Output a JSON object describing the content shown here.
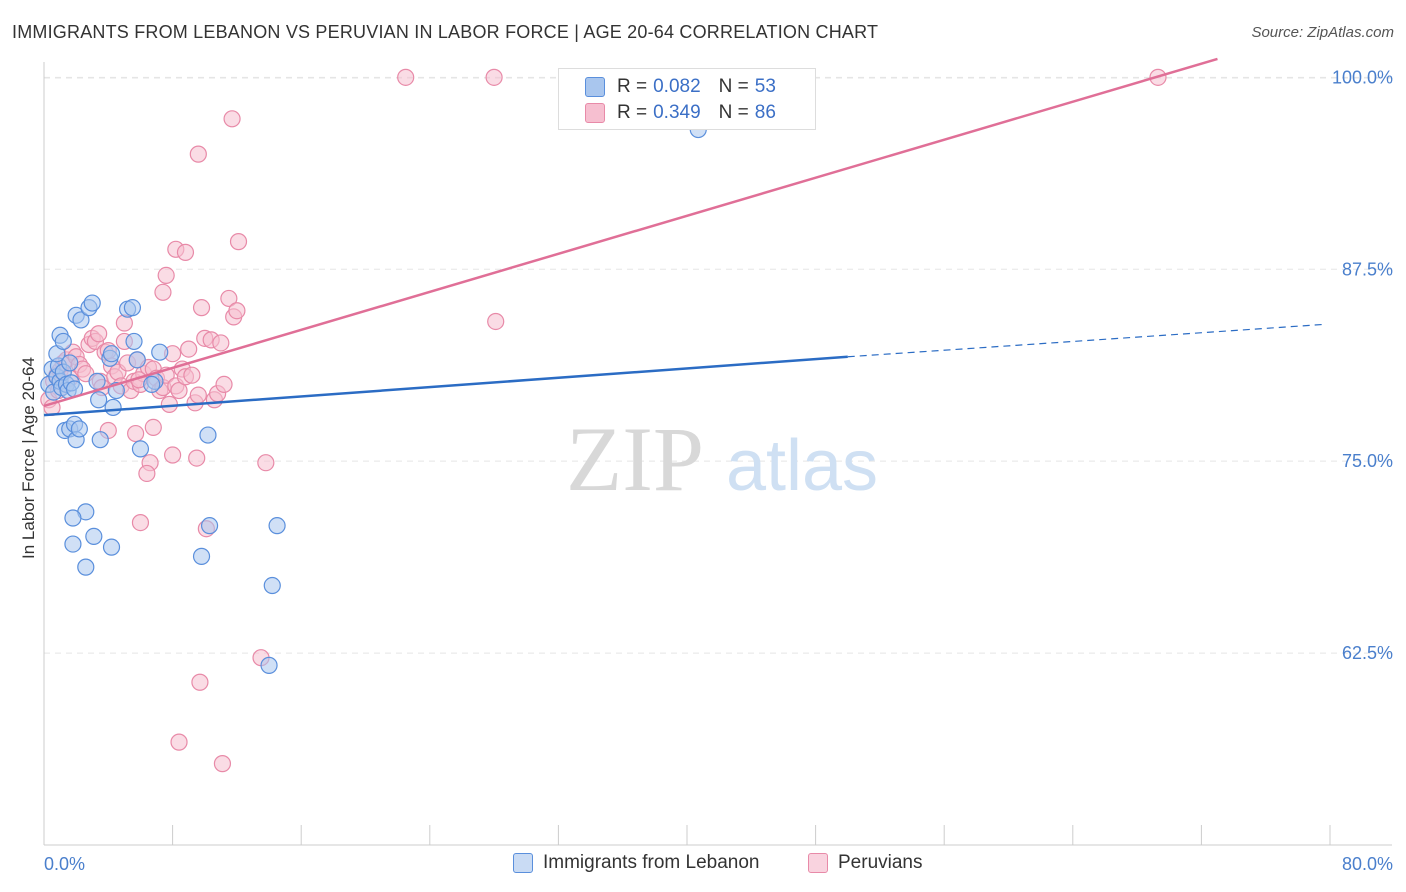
{
  "title": "IMMIGRANTS FROM LEBANON VS PERUVIAN IN LABOR FORCE | AGE 20-64 CORRELATION CHART",
  "source": "Source: ZipAtlas.com",
  "watermark": {
    "zip": "ZIP",
    "atlas": "atlas"
  },
  "colors": {
    "blue_fill": "#a9c6ee",
    "blue_stroke": "#5a8fdc",
    "blue_line": "#2b6cc4",
    "pink_fill": "#f6bfd0",
    "pink_stroke": "#e88aa8",
    "pink_line": "#e06f97",
    "axis_text": "#4a7fcc",
    "grid": "#e5e5e5"
  },
  "legend": {
    "rows": [
      {
        "r_label": "R = ",
        "r_value": "0.082",
        "n_label": "N = ",
        "n_value": "53"
      },
      {
        "r_label": "R = ",
        "r_value": "0.349",
        "n_label": "N = ",
        "n_value": "86"
      }
    ]
  },
  "bottom_legend": [
    "Immigrants from Lebanon",
    "Peruvians"
  ],
  "chart_data": {
    "type": "scatter",
    "title": "IMMIGRANTS FROM LEBANON VS PERUVIAN IN LABOR FORCE | AGE 20-64 CORRELATION CHART",
    "xlabel": "",
    "ylabel": "In Labor Force | Age 20-64",
    "xlim": [
      0,
      80
    ],
    "ylim": [
      50,
      101
    ],
    "x_tick_labels": [
      "0.0%",
      "80.0%"
    ],
    "y_ticks": [
      62.5,
      75.0,
      87.5,
      100.0
    ],
    "y_tick_labels": [
      "62.5%",
      "75.0%",
      "87.5%",
      "100.0%"
    ],
    "grid": true,
    "series": [
      {
        "name": "Immigrants from Lebanon",
        "points": [
          [
            0.3,
            80.0
          ],
          [
            0.5,
            81.0
          ],
          [
            0.6,
            79.5
          ],
          [
            0.8,
            80.5
          ],
          [
            0.9,
            81.2
          ],
          [
            1.0,
            80.2
          ],
          [
            1.1,
            79.8
          ],
          [
            1.2,
            80.8
          ],
          [
            0.8,
            82.0
          ],
          [
            1.0,
            83.2
          ],
          [
            1.2,
            82.8
          ],
          [
            1.4,
            80.0
          ],
          [
            1.5,
            79.6
          ],
          [
            1.6,
            81.4
          ],
          [
            1.7,
            80.1
          ],
          [
            1.9,
            79.7
          ],
          [
            1.3,
            77.0
          ],
          [
            1.6,
            77.1
          ],
          [
            1.9,
            77.4
          ],
          [
            2.0,
            76.4
          ],
          [
            2.2,
            77.1
          ],
          [
            2.0,
            84.5
          ],
          [
            2.3,
            84.2
          ],
          [
            2.8,
            85.0
          ],
          [
            3.0,
            85.3
          ],
          [
            3.3,
            80.2
          ],
          [
            3.4,
            79.0
          ],
          [
            4.1,
            81.7
          ],
          [
            4.2,
            82.0
          ],
          [
            4.3,
            78.5
          ],
          [
            4.5,
            79.6
          ],
          [
            5.2,
            84.9
          ],
          [
            5.5,
            85.0
          ],
          [
            5.6,
            82.8
          ],
          [
            5.8,
            81.6
          ],
          [
            6.0,
            75.8
          ],
          [
            6.9,
            80.2
          ],
          [
            3.5,
            76.4
          ],
          [
            2.6,
            71.7
          ],
          [
            1.8,
            71.3
          ],
          [
            3.1,
            70.1
          ],
          [
            1.8,
            69.6
          ],
          [
            4.2,
            69.4
          ],
          [
            2.6,
            68.1
          ],
          [
            7.2,
            82.1
          ],
          [
            10.3,
            70.8
          ],
          [
            9.8,
            68.8
          ],
          [
            10.2,
            76.7
          ],
          [
            14.5,
            70.8
          ],
          [
            14.2,
            66.9
          ],
          [
            14.0,
            61.7
          ],
          [
            40.7,
            96.6
          ],
          [
            6.7,
            80.0
          ]
        ]
      },
      {
        "name": "Peruvians",
        "points": [
          [
            0.3,
            79.0
          ],
          [
            0.5,
            78.5
          ],
          [
            0.6,
            80.2
          ],
          [
            0.8,
            80.6
          ],
          [
            0.9,
            79.6
          ],
          [
            1.0,
            80.9
          ],
          [
            1.2,
            81.4
          ],
          [
            1.4,
            81.6
          ],
          [
            1.6,
            80.4
          ],
          [
            1.8,
            82.1
          ],
          [
            2.0,
            81.8
          ],
          [
            2.2,
            81.3
          ],
          [
            2.4,
            81.0
          ],
          [
            2.6,
            80.7
          ],
          [
            2.8,
            82.6
          ],
          [
            3.0,
            83.0
          ],
          [
            3.2,
            82.8
          ],
          [
            3.4,
            83.3
          ],
          [
            3.5,
            80.2
          ],
          [
            3.6,
            79.8
          ],
          [
            3.8,
            82.1
          ],
          [
            4.0,
            82.2
          ],
          [
            4.2,
            81.2
          ],
          [
            4.4,
            80.5
          ],
          [
            4.6,
            80.8
          ],
          [
            4.8,
            79.9
          ],
          [
            5.0,
            82.8
          ],
          [
            5.2,
            81.4
          ],
          [
            5.4,
            79.6
          ],
          [
            5.6,
            80.2
          ],
          [
            5.8,
            81.6
          ],
          [
            6.0,
            80.0
          ],
          [
            6.2,
            80.7
          ],
          [
            6.5,
            81.1
          ],
          [
            6.8,
            81.0
          ],
          [
            7.0,
            80.4
          ],
          [
            7.2,
            79.6
          ],
          [
            7.4,
            79.8
          ],
          [
            7.6,
            80.6
          ],
          [
            7.8,
            78.7
          ],
          [
            8.0,
            82.0
          ],
          [
            8.2,
            79.9
          ],
          [
            8.4,
            79.6
          ],
          [
            8.6,
            81.0
          ],
          [
            8.8,
            80.5
          ],
          [
            9.0,
            82.3
          ],
          [
            9.2,
            80.6
          ],
          [
            9.4,
            78.8
          ],
          [
            9.6,
            79.3
          ],
          [
            10.0,
            83.0
          ],
          [
            10.4,
            82.9
          ],
          [
            10.6,
            79.0
          ],
          [
            10.8,
            79.4
          ],
          [
            11.0,
            82.7
          ],
          [
            11.2,
            80.0
          ],
          [
            11.5,
            85.6
          ],
          [
            11.8,
            84.4
          ],
          [
            12.0,
            84.8
          ],
          [
            5.0,
            84.0
          ],
          [
            7.4,
            86.0
          ],
          [
            7.6,
            87.1
          ],
          [
            8.2,
            88.8
          ],
          [
            8.8,
            88.6
          ],
          [
            9.8,
            85.0
          ],
          [
            12.1,
            89.3
          ],
          [
            11.7,
            97.3
          ],
          [
            9.6,
            95.0
          ],
          [
            22.5,
            100.0
          ],
          [
            28.0,
            100.0
          ],
          [
            69.3,
            100.0
          ],
          [
            28.1,
            84.1
          ],
          [
            4.0,
            77.0
          ],
          [
            5.7,
            76.8
          ],
          [
            6.8,
            77.2
          ],
          [
            6.6,
            74.9
          ],
          [
            6.4,
            74.2
          ],
          [
            8.0,
            75.4
          ],
          [
            9.5,
            75.2
          ],
          [
            13.8,
            74.9
          ],
          [
            6.0,
            71.0
          ],
          [
            10.1,
            70.6
          ],
          [
            13.5,
            62.2
          ],
          [
            9.7,
            60.6
          ],
          [
            8.4,
            56.7
          ],
          [
            11.1,
            55.3
          ],
          [
            5.9,
            80.3
          ]
        ]
      }
    ],
    "trendlines": [
      {
        "series": "Immigrants from Lebanon",
        "solid": [
          [
            0,
            78.0
          ],
          [
            50.0,
            81.8
          ]
        ],
        "dashed": [
          [
            50.0,
            81.8
          ],
          [
            79.5,
            83.9
          ]
        ]
      },
      {
        "series": "Peruvians",
        "solid": [
          [
            0,
            78.6
          ],
          [
            73.0,
            101.2
          ]
        ]
      }
    ]
  }
}
